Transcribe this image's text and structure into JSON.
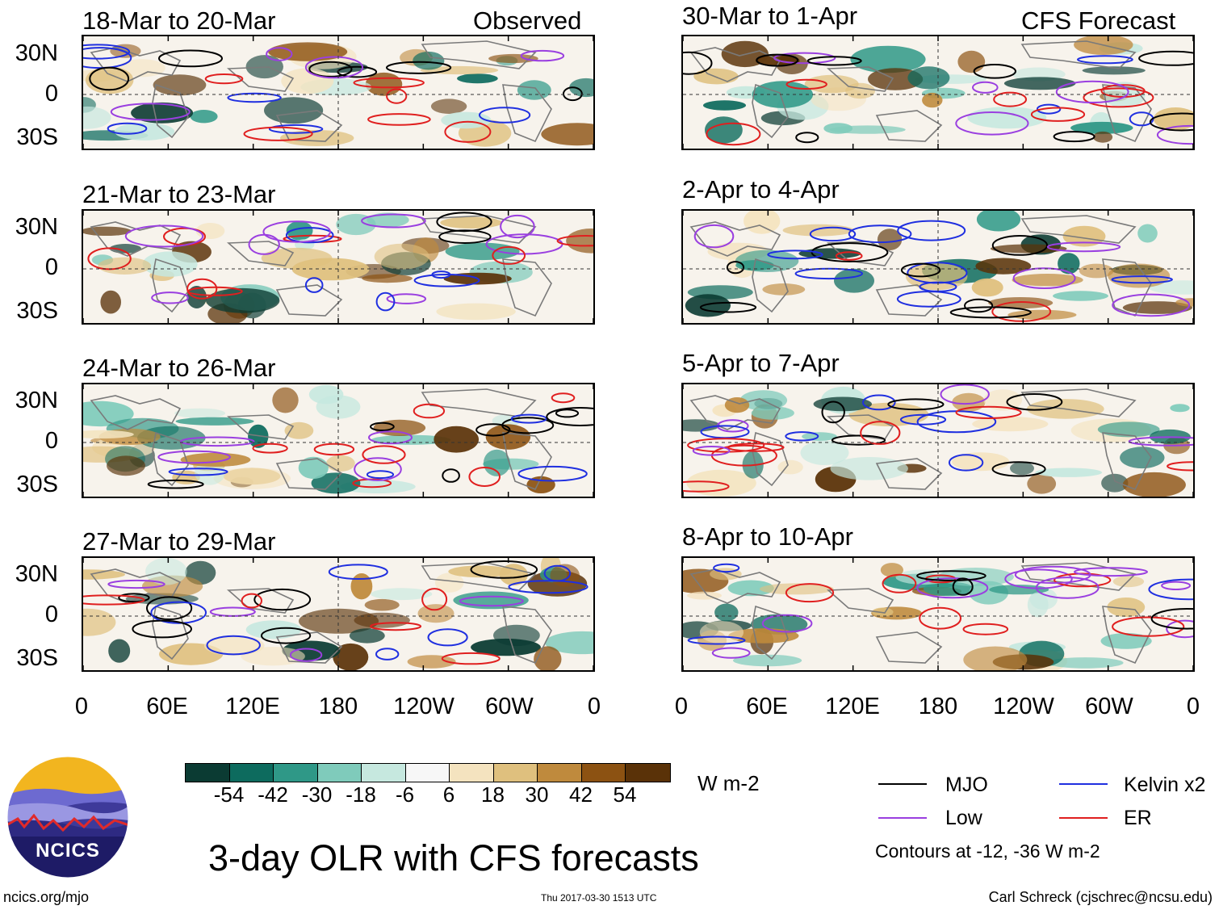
{
  "panels": [
    {
      "title": "18-Mar to 20-Mar",
      "header": "Observed"
    },
    {
      "title": "30-Mar to 1-Apr",
      "header": "CFS Forecast"
    },
    {
      "title": "21-Mar to 23-Mar",
      "header": ""
    },
    {
      "title": "2-Apr to 4-Apr",
      "header": ""
    },
    {
      "title": "24-Mar to 26-Mar",
      "header": ""
    },
    {
      "title": "5-Apr to 7-Apr",
      "header": ""
    },
    {
      "title": "27-Mar to 29-Mar",
      "header": ""
    },
    {
      "title": "8-Apr to 10-Apr",
      "header": ""
    }
  ],
  "lat_labels": [
    "30N",
    "0",
    "30S"
  ],
  "lon_labels": [
    "0",
    "60E",
    "120E",
    "180",
    "120W",
    "60W",
    "0"
  ],
  "colorbar": {
    "colors": [
      "#0b3b33",
      "#0d6b5e",
      "#2f9887",
      "#7fcbbb",
      "#c6e8df",
      "#f7f7f7",
      "#f4e3bf",
      "#dfc07e",
      "#bf8a3d",
      "#8c5212",
      "#5a3208"
    ],
    "labels": [
      "-54",
      "-42",
      "-30",
      "-18",
      "-6",
      "6",
      "18",
      "30",
      "42",
      "54"
    ],
    "units": "W m-2"
  },
  "legend": {
    "items": [
      {
        "label": "MJO",
        "color": "#000000"
      },
      {
        "label": "Kelvin x2",
        "color": "#1f2fe0"
      },
      {
        "label": "Low",
        "color": "#9a3fe0"
      },
      {
        "label": "ER",
        "color": "#e01f1f"
      }
    ],
    "note": "Contours at -12, -36 W m-2"
  },
  "logo": {
    "text": "NCICS"
  },
  "title": "3-day OLR with CFS forecasts",
  "footer": {
    "left": "ncics.org/mjo",
    "center": "Thu 2017-03-30 1513 UTC",
    "right": "Carl Schreck (cjschrec@ncsu.edu)"
  }
}
